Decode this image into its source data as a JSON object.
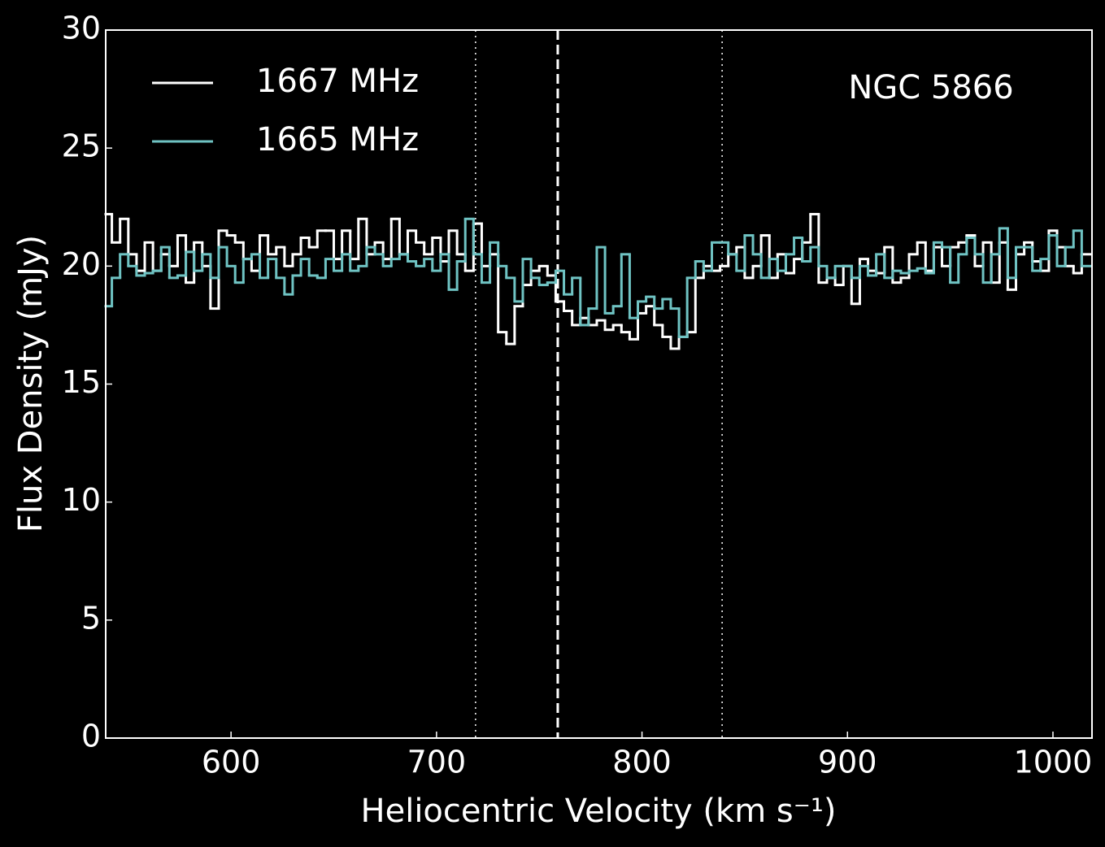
{
  "chart_data": {
    "type": "step",
    "xlabel": "Heliocentric Velocity (km s⁻¹)",
    "ylabel": "Flux Density (mJy)",
    "annotation": "NGC 5866",
    "xlim": [
      539,
      1019
    ],
    "ylim": [
      0,
      30
    ],
    "xticks": [
      600,
      700,
      800,
      900,
      1000
    ],
    "yticks": [
      0,
      5,
      10,
      15,
      20,
      25,
      30
    ],
    "legend": "upper left",
    "vlines": [
      {
        "value": 719,
        "style": "dotted"
      },
      {
        "value": 759,
        "style": "dashed"
      },
      {
        "value": 839,
        "style": "dotted"
      }
    ],
    "x": [
      540,
      544,
      548,
      552,
      556,
      560,
      564,
      568,
      572,
      576,
      580,
      584,
      588,
      592,
      596,
      600,
      604,
      608,
      612,
      616,
      620,
      624,
      628,
      632,
      636,
      640,
      644,
      648,
      652,
      656,
      660,
      664,
      668,
      672,
      676,
      680,
      684,
      688,
      692,
      696,
      700,
      704,
      708,
      712,
      716,
      720,
      724,
      728,
      732,
      736,
      740,
      744,
      748,
      752,
      756,
      760,
      764,
      768,
      772,
      776,
      780,
      784,
      788,
      792,
      796,
      800,
      804,
      808,
      812,
      816,
      820,
      824,
      828,
      832,
      836,
      840,
      844,
      848,
      852,
      856,
      860,
      864,
      868,
      872,
      876,
      880,
      884,
      888,
      892,
      896,
      900,
      904,
      908,
      912,
      916,
      920,
      924,
      928,
      932,
      936,
      940,
      944,
      948,
      952,
      956,
      960,
      964,
      968,
      972,
      976,
      980,
      984,
      988,
      992,
      996,
      1000,
      1004,
      1008,
      1012,
      1016
    ],
    "series": [
      {
        "name": "1667 MHz",
        "color": "#ffffff",
        "values": [
          22.2,
          21,
          22,
          20.5,
          19.8,
          21,
          19.8,
          20.5,
          20,
          21.3,
          19.3,
          21,
          20,
          18.2,
          21.5,
          21.3,
          21,
          20.3,
          19.8,
          21.3,
          20.5,
          20.8,
          20,
          20.5,
          21.2,
          20.8,
          21.5,
          21.5,
          20.3,
          21.5,
          20.3,
          22,
          20.5,
          21,
          20.3,
          22,
          20.5,
          21.5,
          21,
          20.5,
          21.2,
          20.2,
          21.5,
          20.5,
          19.8,
          21.8,
          20,
          20.5,
          17.2,
          16.7,
          18.3,
          19.2,
          19.8,
          20,
          19.6,
          18.5,
          18.1,
          17.5,
          17.8,
          17.5,
          17.7,
          17.3,
          17.5,
          17.2,
          16.9,
          18,
          18.3,
          17.5,
          17,
          16.5,
          17,
          17.2,
          19.5,
          20,
          19.8,
          20,
          20.5,
          20.8,
          19.5,
          20,
          21.3,
          19.5,
          20.5,
          19.7,
          20.3,
          21,
          22.2,
          19.3,
          19.5,
          19.2,
          20,
          18.4,
          20.3,
          19.8,
          19.7,
          20.8,
          19.3,
          19.5,
          20.5,
          21,
          19.8,
          20.8,
          20,
          20.8,
          21,
          21.3,
          20,
          21,
          19.3,
          21,
          19,
          20.5,
          21,
          20.2,
          19.8,
          21.5,
          20.8,
          20,
          19.7,
          20.5
        ]
      },
      {
        "name": "1665 MHz",
        "color": "#6fc3c3",
        "values": [
          18.3,
          19.5,
          20.5,
          20,
          19.6,
          19.7,
          19.8,
          20.8,
          19.5,
          19.6,
          20.6,
          19.8,
          20.5,
          19.5,
          20.8,
          20,
          19.3,
          20.3,
          20.5,
          19.5,
          20.3,
          19.5,
          18.8,
          19.6,
          20.3,
          19.6,
          19.5,
          20.3,
          19.8,
          20.5,
          19.8,
          20,
          20.8,
          20.5,
          20,
          20.3,
          20.5,
          20.2,
          20,
          20.3,
          19.8,
          20.5,
          19,
          20.2,
          22,
          20.5,
          19.3,
          21,
          20,
          19.5,
          18.5,
          20.3,
          19.5,
          19.2,
          19.3,
          19.8,
          18.8,
          19.5,
          17.5,
          18.2,
          20.8,
          18,
          18.3,
          20.5,
          17.8,
          18.5,
          18.7,
          18.2,
          18.6,
          18.2,
          17,
          19.5,
          20.2,
          19.8,
          21,
          21,
          20.5,
          19.8,
          21.3,
          20.5,
          19.5,
          20.3,
          19.8,
          20.5,
          21.2,
          20.2,
          20.8,
          20,
          19.5,
          20,
          20,
          19.5,
          20,
          19.6,
          20.5,
          19.5,
          19.8,
          19.7,
          19.8,
          19.9,
          19.7,
          21,
          20.8,
          19.3,
          20.5,
          21.2,
          20.5,
          19.3,
          20.5,
          21.6,
          19.5,
          20.8,
          20.8,
          19.8,
          20.3,
          21.3,
          20,
          20.8,
          21.5,
          20
        ]
      }
    ]
  }
}
